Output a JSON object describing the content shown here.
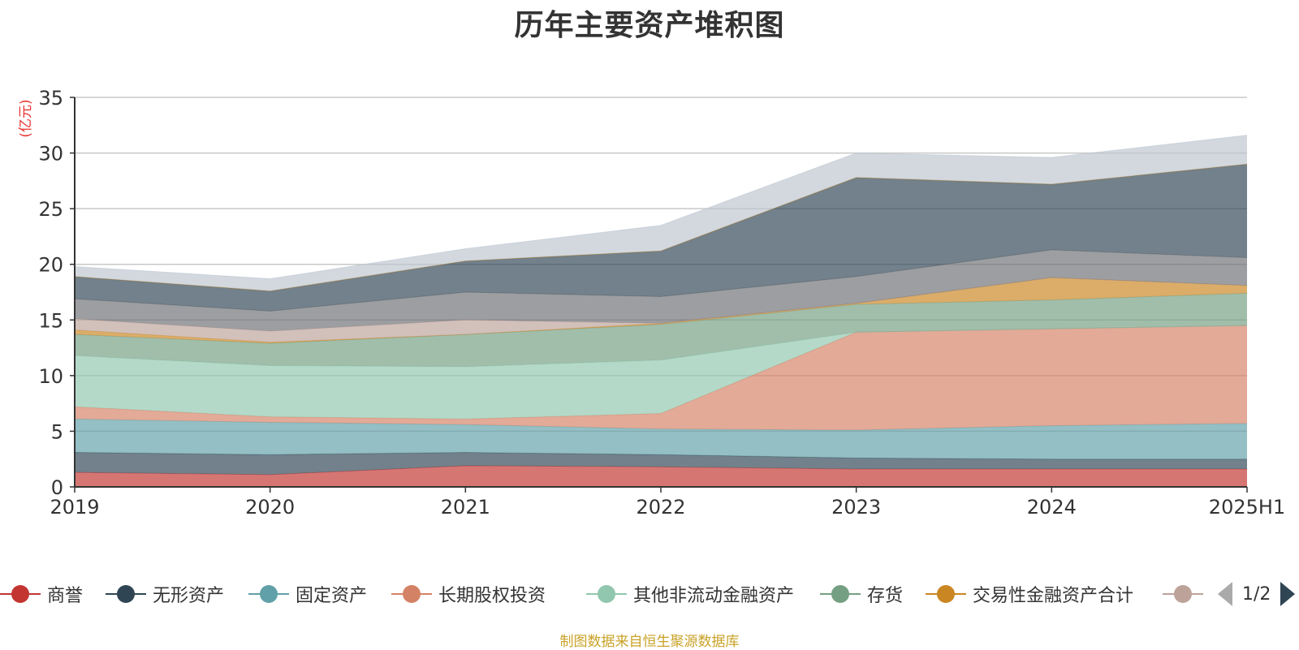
{
  "title": "历年主要资产堆积图",
  "source": "制图数据来自恒生聚源数据库",
  "pager": {
    "text": "1/2"
  },
  "chart_data": {
    "type": "area",
    "stacked": true,
    "title": "历年主要资产堆积图",
    "ylabel": "(亿元)",
    "xlabel": "",
    "categories": [
      "2019",
      "2020",
      "2021",
      "2022",
      "2023",
      "2024",
      "2025H1"
    ],
    "ylim": [
      0,
      35
    ],
    "yticks": [
      0,
      5,
      10,
      15,
      20,
      25,
      30,
      35
    ],
    "grid": true,
    "legend_position": "bottom",
    "series": [
      {
        "name": "商誉",
        "color": "#c23531",
        "values": [
          1.3,
          1.1,
          1.9,
          1.8,
          1.6,
          1.6,
          1.6
        ]
      },
      {
        "name": "无形资产",
        "color": "#2f4554",
        "values": [
          1.8,
          1.8,
          1.2,
          1.1,
          1.0,
          0.9,
          0.9
        ]
      },
      {
        "name": "固定资产",
        "color": "#61a0a8",
        "values": [
          3.0,
          2.9,
          2.5,
          2.3,
          2.5,
          3.0,
          3.2
        ]
      },
      {
        "name": "长期股权投资",
        "color": "#d48265",
        "values": [
          1.1,
          0.5,
          0.5,
          1.4,
          8.8,
          8.7,
          8.8
        ]
      },
      {
        "name": "其他非流动金融资产",
        "color": "#91c7ae",
        "values": [
          4.6,
          4.6,
          4.7,
          4.8,
          0.0,
          0.0,
          0.0
        ]
      },
      {
        "name": "存货",
        "color": "#749f83",
        "values": [
          1.9,
          2.0,
          2.9,
          3.2,
          2.5,
          2.6,
          2.9
        ]
      },
      {
        "name": "交易性金融资产合计",
        "color": "#ca8622",
        "values": [
          0.4,
          0.1,
          0.0,
          0.1,
          0.1,
          2.0,
          0.7
        ]
      },
      {
        "name": "",
        "color": "#bda29a",
        "values": [
          1.0,
          1.0,
          1.3,
          0.0,
          0.0,
          0.0,
          0.0
        ]
      },
      {
        "name": "",
        "color": "#6e7074",
        "values": [
          1.8,
          1.8,
          2.5,
          2.4,
          2.4,
          2.5,
          2.5
        ]
      },
      {
        "name": "",
        "color": "#2f4554",
        "values": [
          2.0,
          1.8,
          2.8,
          4.1,
          8.9,
          5.9,
          8.4
        ]
      },
      {
        "name": "",
        "color": "#ca8622",
        "values": [
          0.0,
          0.0,
          0.0,
          0.0,
          0.0,
          0.0,
          0.0
        ]
      },
      {
        "name": "",
        "color": "#bcc5cf",
        "values": [
          0.9,
          1.1,
          1.1,
          2.3,
          2.2,
          2.4,
          2.6
        ]
      }
    ]
  }
}
